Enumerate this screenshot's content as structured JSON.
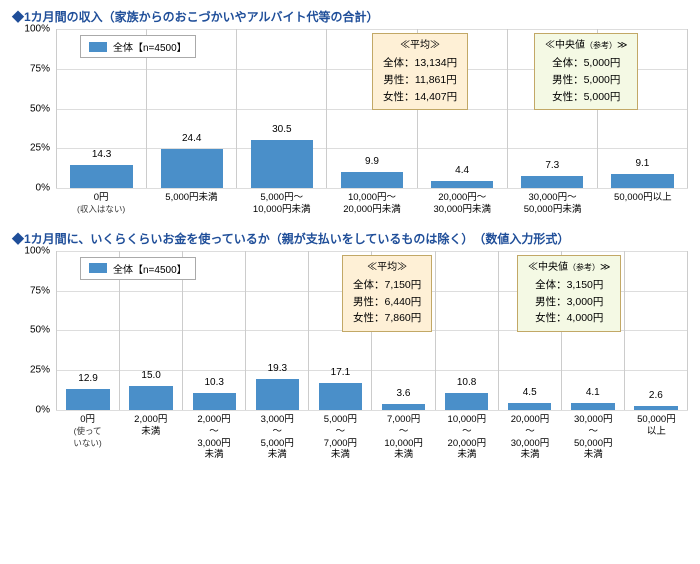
{
  "colors": {
    "bar": "#4a8fc9",
    "grid": "#dddddd",
    "title": "#1f4e99",
    "avg_box_bg": "#fef0d6",
    "median_box_bg": "#f4f9e4",
    "box_border": "#c2a866",
    "slot_border": "#cccccc"
  },
  "chart1": {
    "title": "◆1カ月間の収入（家族からのおこづかいやアルバイト代等の合計）",
    "legend": "全体【n=4500】",
    "ylim": [
      0,
      100
    ],
    "ytick_step": 25,
    "bar_width_pct": 70,
    "categories": [
      {
        "line1": "0円",
        "sub": "(収入はない)"
      },
      {
        "line1": "5,000円未満"
      },
      {
        "line1": "5,000円～",
        "line2": "10,000円未満"
      },
      {
        "line1": "10,000円～",
        "line2": "20,000円未満"
      },
      {
        "line1": "20,000円～",
        "line2": "30,000円未満"
      },
      {
        "line1": "30,000円～",
        "line2": "50,000円未満"
      },
      {
        "line1": "50,000円以上"
      }
    ],
    "values": [
      14.3,
      24.4,
      30.5,
      9.9,
      4.4,
      7.3,
      9.1
    ],
    "avg": {
      "header": "≪平均≫",
      "lines": [
        "全体：13,134円",
        "男性：11,861円",
        "女性：14,407円"
      ]
    },
    "median": {
      "header": "≪中央値",
      "header_small": "（参考）",
      "header_tail": "≫",
      "lines": [
        "全体：5,000円",
        "男性：5,000円",
        "女性：5,000円"
      ]
    }
  },
  "chart2": {
    "title": "◆1カ月間に、いくらくらいお金を使っているか（親が支払いをしているものは除く）　（数値入力形式）",
    "legend": "全体【n=4500】",
    "ylim": [
      0,
      100
    ],
    "ytick_step": 25,
    "bar_width_pct": 70,
    "categories": [
      {
        "line1": "0円",
        "sub": "(使って",
        "sub2": "いない)"
      },
      {
        "line1": "2,000円",
        "line2": "未満"
      },
      {
        "line1": "2,000円",
        "line2": "～",
        "line3": "3,000円",
        "line4": "未満"
      },
      {
        "line1": "3,000円",
        "line2": "～",
        "line3": "5,000円",
        "line4": "未満"
      },
      {
        "line1": "5,000円",
        "line2": "～",
        "line3": "7,000円",
        "line4": "未満"
      },
      {
        "line1": "7,000円",
        "line2": "～",
        "line3": "10,000円",
        "line4": "未満"
      },
      {
        "line1": "10,000円",
        "line2": "～",
        "line3": "20,000円",
        "line4": "未満"
      },
      {
        "line1": "20,000円",
        "line2": "～",
        "line3": "30,000円",
        "line4": "未満"
      },
      {
        "line1": "30,000円",
        "line2": "～",
        "line3": "50,000円",
        "line4": "未満"
      },
      {
        "line1": "50,000円",
        "line2": "以上"
      }
    ],
    "values": [
      12.9,
      15.0,
      10.3,
      19.3,
      17.1,
      3.6,
      10.8,
      4.5,
      4.1,
      2.6
    ],
    "avg": {
      "header": "≪平均≫",
      "lines": [
        "全体：7,150円",
        "男性：6,440円",
        "女性：7,860円"
      ]
    },
    "median": {
      "header": "≪中央値",
      "header_small": "（参考）",
      "header_tail": "≫",
      "lines": [
        "全体：3,150円",
        "男性：3,000円",
        "女性：4,000円"
      ]
    }
  }
}
